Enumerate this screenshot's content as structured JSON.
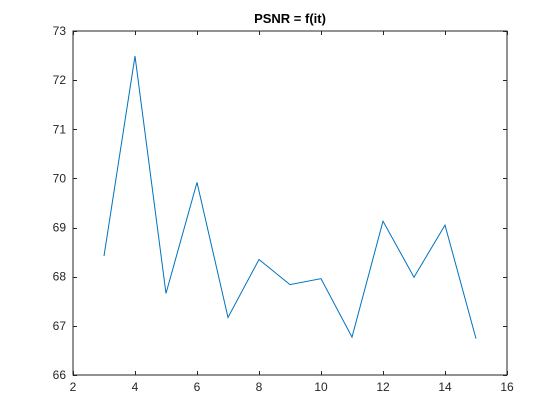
{
  "chart_data": {
    "type": "line",
    "title": "PSNR = f(it)",
    "xlabel": "",
    "ylabel": "",
    "xlim": [
      2,
      16
    ],
    "ylim": [
      66,
      73
    ],
    "xticks": [
      2,
      4,
      6,
      8,
      10,
      12,
      14,
      16
    ],
    "yticks": [
      66,
      67,
      68,
      69,
      70,
      71,
      72,
      73
    ],
    "grid": false,
    "legend": "none",
    "colors": {
      "line": "#0072BD",
      "axes": "#262626",
      "background": "#ffffff"
    },
    "series": [
      {
        "x": [
          3,
          4,
          5,
          6,
          7,
          8,
          9,
          10,
          11,
          12,
          13,
          14,
          15
        ],
        "y": [
          68.42,
          72.49,
          67.66,
          69.92,
          67.17,
          68.35,
          67.84,
          67.96,
          66.77,
          69.13,
          67.99,
          69.05,
          66.74
        ]
      }
    ]
  }
}
